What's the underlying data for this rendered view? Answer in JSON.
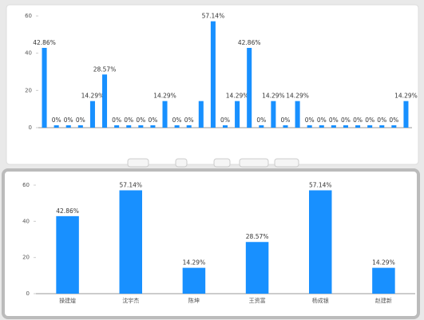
{
  "chart_data": [
    {
      "type": "bar",
      "color": "#1890ff",
      "ylim": [
        0,
        60
      ],
      "yticks": [
        0,
        20,
        40,
        60
      ],
      "categories": [
        null,
        null,
        null,
        null,
        null,
        null,
        null,
        null,
        null,
        null,
        null,
        null,
        null,
        null,
        null,
        null,
        null,
        null,
        null,
        null,
        null,
        null,
        null,
        null,
        null,
        null,
        null,
        null,
        null,
        null,
        null
      ],
      "values": [
        42.86,
        0,
        0,
        0,
        14.29,
        28.57,
        0,
        0,
        0,
        0,
        14.29,
        0,
        0,
        14.29,
        57.14,
        0,
        14.29,
        42.86,
        0,
        14.29,
        0,
        14.29,
        0,
        0,
        0,
        0,
        0,
        0,
        0,
        0,
        14.29
      ],
      "value_labels": [
        "42.86%",
        "0%",
        "0%",
        "0%",
        "14.29%",
        "28.57%",
        "0%",
        "0%",
        "0%",
        "0%",
        "14.29%",
        "0%",
        "0%",
        null,
        "57.14%",
        "0%",
        "14.29%",
        "42.86%",
        "0%",
        "14.29%",
        "0%",
        "14.29%",
        "0%",
        "0%",
        "0%",
        "0%",
        "0%",
        "0%",
        "0%",
        "0%",
        "14.29%"
      ]
    },
    {
      "type": "bar",
      "color": "#1890ff",
      "ylim": [
        0,
        60
      ],
      "yticks": [
        0,
        20,
        40,
        60
      ],
      "categories": [
        "操建煌",
        "沈宇杰",
        "陈坤",
        "王资富",
        "杨成银",
        "赵建新"
      ],
      "values": [
        42.86,
        57.14,
        14.29,
        28.57,
        57.14,
        14.29
      ],
      "value_labels": [
        "42.86%",
        "57.14%",
        "14.29%",
        "28.57%",
        "57.14%",
        "14.29%"
      ]
    }
  ]
}
